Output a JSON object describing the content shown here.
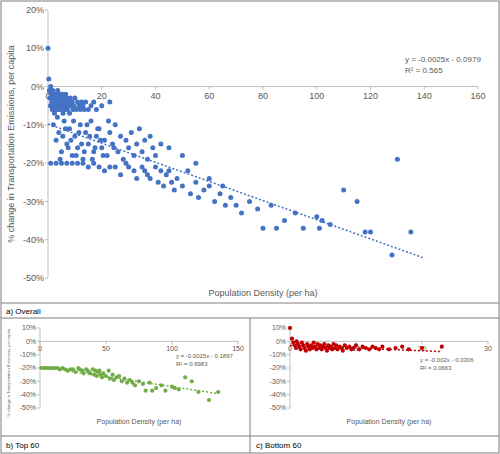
{
  "chart_data": [
    {
      "type": "scatter",
      "title": "a) Overall",
      "x_label": "Population Density (per ha)",
      "y_label": "% change in Transportation Emissions, per capita",
      "color": "#4472c4",
      "marker": "circle",
      "x": [
        1,
        3,
        5,
        7,
        9,
        11,
        13,
        15,
        17,
        19,
        21,
        23,
        25,
        27,
        29,
        30,
        32,
        33,
        35,
        36,
        37,
        38,
        40,
        41,
        42,
        43,
        44,
        45,
        46,
        47,
        48,
        50,
        52,
        53,
        55,
        56,
        58,
        60,
        62,
        64,
        66,
        68,
        70,
        72,
        75,
        78,
        80,
        83,
        85,
        88,
        92,
        95,
        100,
        102,
        105,
        110,
        115,
        120,
        128,
        135,
        0,
        0.3,
        0.5,
        0.7,
        0.9,
        1,
        1.2,
        1.4,
        1.6,
        1.8,
        2,
        2.2,
        2.4,
        2.6,
        2.8,
        3,
        3.2,
        3.4,
        3.6,
        3.8,
        4,
        4.2,
        4.4,
        4.6,
        4.8,
        5,
        5.2,
        5.4,
        5.6,
        5.8,
        6,
        6.2,
        6.4,
        6.6,
        6.8,
        7,
        7.2,
        7.5,
        7.8,
        8,
        8.3,
        8.6,
        9,
        9.3,
        9.6,
        10,
        10.5,
        11,
        11.5,
        12,
        12.5,
        13,
        13.5,
        14,
        15,
        16,
        17,
        18,
        20,
        23,
        2,
        3,
        4,
        5,
        6,
        7,
        8,
        9,
        10,
        11,
        12,
        13,
        14,
        15,
        16,
        17,
        18,
        19,
        20,
        21,
        22,
        23,
        24,
        25,
        26,
        27,
        28,
        29,
        30,
        31,
        32,
        33,
        34,
        35,
        36,
        37,
        38,
        39,
        40,
        42,
        3.5,
        4.5,
        5.5,
        6.5,
        7.5,
        8.5,
        9.5,
        10.5,
        11.5,
        12.5,
        13.5,
        14.5,
        15.5,
        16.5,
        17.5,
        18.5,
        19.5,
        20.5,
        22.5,
        24.5,
        130,
        101,
        118,
        50,
        55,
        60,
        45,
        65
      ],
      "values": [
        -20,
        -20,
        -20,
        -20,
        -20,
        -20,
        -20,
        -21,
        -20,
        -21,
        -22,
        -21,
        -21,
        -23,
        -20,
        -21,
        -22,
        -24,
        -21,
        -22,
        -23,
        -24,
        -21,
        -25,
        -22,
        -26,
        -23,
        -22,
        -25,
        -27,
        -24,
        -26,
        -22,
        -28,
        -25,
        -29,
        -27,
        -26,
        -30,
        -28,
        -31,
        -29,
        -31,
        -33,
        -30,
        -32,
        -37,
        -31,
        -37,
        -35,
        -33,
        -37,
        -34,
        -35,
        -36,
        -27,
        -30,
        -38,
        -44,
        -38,
        10,
        2,
        -1,
        -3,
        -5,
        0,
        -2,
        -4,
        -6,
        -1,
        -3,
        -5,
        -7,
        -2,
        -4,
        -6,
        -3,
        -5,
        -1,
        -4,
        -6,
        -2,
        -5,
        -3,
        -6,
        -4,
        -2,
        -5,
        -7,
        -3,
        -5,
        -4,
        -6,
        -2,
        -5,
        -3,
        -6,
        -4,
        -5,
        -7,
        -3,
        -5,
        -4,
        -6,
        -5,
        -3,
        -6,
        -4,
        -5,
        -6,
        -4,
        -5,
        -6,
        -4,
        -6,
        -5,
        -4,
        -6,
        -5,
        -4,
        -10,
        -14,
        -12,
        -17,
        -9,
        -15,
        -11,
        -18,
        -13,
        -16,
        -10,
        -19,
        -12,
        -15,
        -9,
        -17,
        -13,
        -11,
        -16,
        -14,
        -18,
        -12,
        -15,
        -10,
        -17,
        -13,
        -19,
        -14,
        -16,
        -12,
        -18,
        -15,
        -11,
        -17,
        -14,
        -19,
        -13,
        -16,
        -18,
        -15,
        -8,
        -19,
        -13,
        -11,
        -16,
        -14,
        -9,
        -18,
        -12,
        -15,
        -17,
        -10,
        -13,
        -19,
        -16,
        -11,
        -14,
        -18,
        -9,
        -16,
        -19,
        -37,
        -38,
        -18,
        -20,
        -24,
        -16,
        -26
      ],
      "xlim": [
        0,
        160
      ],
      "ylim": [
        -50,
        20
      ],
      "xticks": [
        0,
        20,
        40,
        60,
        80,
        100,
        120,
        140,
        160
      ],
      "yticks": [
        {
          "value": 20,
          "label": "20%"
        },
        {
          "value": 10,
          "label": "10%"
        },
        {
          "value": 0,
          "label": "0%"
        },
        {
          "value": -10,
          "label": "-10%"
        },
        {
          "value": -20,
          "label": "-20%"
        },
        {
          "value": -30,
          "label": "-30%"
        },
        {
          "value": -40,
          "label": "-40%"
        },
        {
          "value": -50,
          "label": "-50%"
        }
      ],
      "trendline": {
        "x": [
          0,
          140
        ],
        "values": [
          -9.79,
          -44.79
        ],
        "line_style": "dotted"
      },
      "annotations": [
        "y = -0.0025x - 0.0979",
        "R² = 0.565"
      ]
    },
    {
      "type": "scatter",
      "title": "b) Top 60",
      "x_label": "Population Density (per ha)",
      "y_label": "% change in Transportation Emissions, per capita",
      "color": "#70ad47",
      "marker": "circle",
      "x": [
        1,
        3,
        5,
        7,
        9,
        11,
        13,
        15,
        17,
        19,
        21,
        23,
        25,
        27,
        29,
        30,
        32,
        33,
        35,
        36,
        37,
        38,
        40,
        41,
        42,
        43,
        44,
        45,
        46,
        47,
        48,
        50,
        52,
        53,
        55,
        56,
        58,
        60,
        62,
        64,
        66,
        68,
        70,
        72,
        75,
        78,
        80,
        83,
        85,
        88,
        92,
        95,
        100,
        102,
        105,
        110,
        115,
        120,
        128,
        135
      ],
      "values": [
        -20,
        -20,
        -20,
        -20,
        -20,
        -20,
        -20,
        -21,
        -20,
        -21,
        -22,
        -21,
        -21,
        -23,
        -20,
        -21,
        -22,
        -24,
        -21,
        -22,
        -23,
        -24,
        -21,
        -25,
        -22,
        -26,
        -23,
        -22,
        -25,
        -27,
        -24,
        -26,
        -22,
        -28,
        -25,
        -29,
        -27,
        -26,
        -30,
        -28,
        -31,
        -29,
        -31,
        -33,
        -30,
        -32,
        -37,
        -31,
        -37,
        -35,
        -33,
        -37,
        -34,
        -35,
        -36,
        -27,
        -30,
        -38,
        -44,
        -38
      ],
      "xlim": [
        0,
        150
      ],
      "ylim": [
        -50,
        10
      ],
      "xticks": [
        0,
        50,
        100,
        150
      ],
      "yticks": [
        {
          "value": 10,
          "label": "10%"
        },
        {
          "value": 0,
          "label": "0%"
        },
        {
          "value": -10,
          "label": "-10%"
        },
        {
          "value": -20,
          "label": "-20%"
        },
        {
          "value": -30,
          "label": "-30%"
        },
        {
          "value": -40,
          "label": "-40%"
        },
        {
          "value": -50,
          "label": "-50%"
        }
      ],
      "trendline": {
        "x": [
          0,
          135
        ],
        "values": [
          -18.97,
          -39.22
        ],
        "line_style": "dotted"
      },
      "annotations": [
        "y = -0.0015x - 0.1897",
        "R² = 0.6983"
      ]
    },
    {
      "type": "scatter",
      "title": "c) Bottom 60",
      "x_label": "Population Density (per ha)",
      "color": "#c00000",
      "marker": "circle",
      "x": [
        0,
        0.3,
        0.5,
        0.7,
        0.9,
        1,
        1.2,
        1.4,
        1.6,
        1.8,
        2,
        2.2,
        2.4,
        2.6,
        2.8,
        3,
        3.2,
        3.4,
        3.6,
        3.8,
        4,
        4.2,
        4.4,
        4.6,
        4.8,
        5,
        5.2,
        5.4,
        5.6,
        5.8,
        6,
        6.2,
        6.4,
        6.6,
        6.8,
        7,
        7.2,
        7.5,
        7.8,
        8,
        8.3,
        8.6,
        9,
        9.3,
        9.6,
        10,
        10.5,
        11,
        11.5,
        12,
        12.5,
        13,
        13.5,
        14,
        15,
        16,
        17,
        18,
        20,
        23
      ],
      "values": [
        10,
        2,
        -1,
        -3,
        -5,
        0,
        -2,
        -4,
        -6,
        -1,
        -3,
        -5,
        -7,
        -2,
        -4,
        -6,
        -3,
        -5,
        -1,
        -4,
        -6,
        -2,
        -5,
        -3,
        -6,
        -4,
        -2,
        -5,
        -7,
        -3,
        -5,
        -4,
        -6,
        -2,
        -5,
        -3,
        -6,
        -4,
        -5,
        -7,
        -3,
        -5,
        -4,
        -6,
        -5,
        -3,
        -6,
        -4,
        -5,
        -6,
        -4,
        -5,
        -6,
        -4,
        -6,
        -5,
        -4,
        -6,
        -5,
        -4
      ],
      "xlim": [
        0,
        30
      ],
      "ylim": [
        -50,
        10
      ],
      "xticks": [
        0,
        10,
        20,
        30
      ],
      "yticks": [
        {
          "value": 10,
          "label": "10%"
        },
        {
          "value": 0,
          "label": "0%"
        },
        {
          "value": -10,
          "label": "-10%"
        },
        {
          "value": -20,
          "label": "-20%"
        },
        {
          "value": -30,
          "label": "-30%"
        },
        {
          "value": -40,
          "label": "-40%"
        },
        {
          "value": -50,
          "label": "-50%"
        }
      ],
      "trendline": {
        "x": [
          0,
          23
        ],
        "values": [
          -3.06,
          -7.66
        ],
        "line_style": "dotted"
      },
      "annotations": [
        "y = -0.002x - 0.0306",
        "R² = 0.0663"
      ]
    }
  ]
}
